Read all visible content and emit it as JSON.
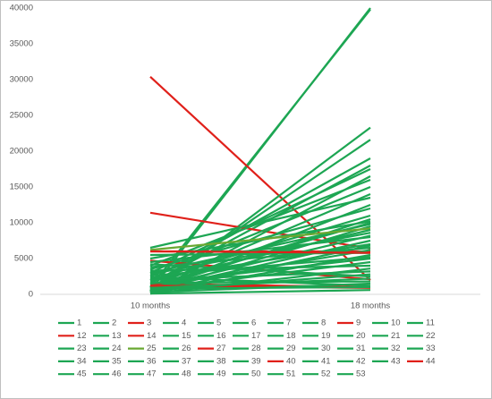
{
  "chart_data": {
    "type": "line",
    "categories": [
      "10 months",
      "18 months"
    ],
    "ylim": [
      0,
      40000
    ],
    "yticks": [
      0,
      5000,
      10000,
      15000,
      20000,
      25000,
      30000,
      35000,
      40000
    ],
    "legend": "bottom",
    "series": [
      {
        "name": "1",
        "color": "#1da653",
        "values": [
          500,
          40000
        ]
      },
      {
        "name": "2",
        "color": "#1da653",
        "values": [
          1000,
          39800
        ]
      },
      {
        "name": "3",
        "color": "#e0201a",
        "values": [
          30400,
          2000
        ]
      },
      {
        "name": "4",
        "color": "#1da653",
        "values": [
          300,
          23300
        ]
      },
      {
        "name": "5",
        "color": "#1da653",
        "values": [
          800,
          21600
        ]
      },
      {
        "name": "6",
        "color": "#1da653",
        "values": [
          2000,
          19000
        ]
      },
      {
        "name": "7",
        "color": "#1da653",
        "values": [
          1500,
          18000
        ]
      },
      {
        "name": "8",
        "color": "#1da653",
        "values": [
          3000,
          17500
        ]
      },
      {
        "name": "9",
        "color": "#e0201a",
        "values": [
          11400,
          6400
        ]
      },
      {
        "name": "10",
        "color": "#1da653",
        "values": [
          200,
          16500
        ]
      },
      {
        "name": "11",
        "color": "#1da653",
        "values": [
          4000,
          16000
        ]
      },
      {
        "name": "12",
        "color": "#e0201a",
        "values": [
          6000,
          6000
        ]
      },
      {
        "name": "13",
        "color": "#1da653",
        "values": [
          2500,
          15000
        ]
      },
      {
        "name": "14",
        "color": "#e0201a",
        "values": [
          4700,
          2100
        ]
      },
      {
        "name": "15",
        "color": "#1da653",
        "values": [
          1000,
          14000
        ]
      },
      {
        "name": "16",
        "color": "#1da653",
        "values": [
          6500,
          13500
        ]
      },
      {
        "name": "17",
        "color": "#1da653",
        "values": [
          500,
          12500
        ]
      },
      {
        "name": "18",
        "color": "#1da653",
        "values": [
          3500,
          12000
        ]
      },
      {
        "name": "19",
        "color": "#1da653",
        "values": [
          2000,
          11000
        ]
      },
      {
        "name": "20",
        "color": "#1da653",
        "values": [
          700,
          10500
        ]
      },
      {
        "name": "21",
        "color": "#1da653",
        "values": [
          5000,
          10200
        ]
      },
      {
        "name": "22",
        "color": "#1da653",
        "values": [
          1200,
          10000
        ]
      },
      {
        "name": "23",
        "color": "#1da653",
        "values": [
          3000,
          9800
        ]
      },
      {
        "name": "24",
        "color": "#1da653",
        "values": [
          400,
          9500
        ]
      },
      {
        "name": "25",
        "color": "#6aa832",
        "values": [
          6200,
          9200
        ]
      },
      {
        "name": "26",
        "color": "#1da653",
        "values": [
          1800,
          9000
        ]
      },
      {
        "name": "27",
        "color": "#e0201a",
        "values": [
          1500,
          1000
        ]
      },
      {
        "name": "28",
        "color": "#1da653",
        "values": [
          2800,
          8600
        ]
      },
      {
        "name": "29",
        "color": "#1da653",
        "values": [
          900,
          8200
        ]
      },
      {
        "name": "30",
        "color": "#1da653",
        "values": [
          4500,
          8000
        ]
      },
      {
        "name": "31",
        "color": "#1da653",
        "values": [
          600,
          7500
        ]
      },
      {
        "name": "32",
        "color": "#1da653",
        "values": [
          2200,
          7000
        ]
      },
      {
        "name": "33",
        "color": "#1da653",
        "values": [
          300,
          6800
        ]
      },
      {
        "name": "34",
        "color": "#1da653",
        "values": [
          3800,
          6500
        ]
      },
      {
        "name": "35",
        "color": "#1da653",
        "values": [
          1000,
          6200
        ]
      },
      {
        "name": "36",
        "color": "#1da653",
        "values": [
          5500,
          5800
        ]
      },
      {
        "name": "37",
        "color": "#1da653",
        "values": [
          200,
          5500
        ]
      },
      {
        "name": "38",
        "color": "#1da653",
        "values": [
          2600,
          5200
        ]
      },
      {
        "name": "39",
        "color": "#1da653",
        "values": [
          1500,
          5000
        ]
      },
      {
        "name": "40",
        "color": "#e0201a",
        "values": [
          6000,
          5800
        ]
      },
      {
        "name": "41",
        "color": "#1da653",
        "values": [
          700,
          4500
        ]
      },
      {
        "name": "42",
        "color": "#1da653",
        "values": [
          3300,
          4000
        ]
      },
      {
        "name": "43",
        "color": "#1da653",
        "values": [
          100,
          3600
        ]
      },
      {
        "name": "44",
        "color": "#e0201a",
        "values": [
          1200,
          900
        ]
      },
      {
        "name": "45",
        "color": "#1da653",
        "values": [
          2000,
          3200
        ]
      },
      {
        "name": "46",
        "color": "#1da653",
        "values": [
          500,
          2800
        ]
      },
      {
        "name": "47",
        "color": "#1da653",
        "values": [
          4200,
          2500
        ]
      },
      {
        "name": "48",
        "color": "#1da653",
        "values": [
          900,
          2200
        ]
      },
      {
        "name": "49",
        "color": "#1da653",
        "values": [
          1600,
          1800
        ]
      },
      {
        "name": "50",
        "color": "#1da653",
        "values": [
          300,
          1500
        ]
      },
      {
        "name": "51",
        "color": "#1da653",
        "values": [
          2400,
          1200
        ]
      },
      {
        "name": "52",
        "color": "#1da653",
        "values": [
          800,
          1000
        ]
      },
      {
        "name": "53",
        "color": "#1da653",
        "values": [
          100,
          600
        ]
      }
    ]
  }
}
